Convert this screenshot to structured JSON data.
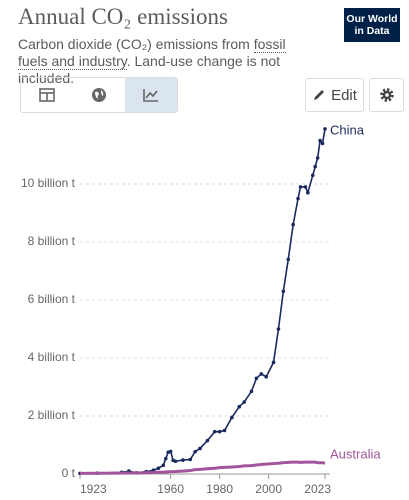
{
  "header": {
    "title": "Annual CO₂ emissions",
    "subtitle_start": "Carbon dioxide (CO₂) emissions from ",
    "subtitle_link": "fossil fuels and industry",
    "subtitle_end": ". Land-use change is not included.",
    "logo": [
      "Our World",
      "in Data"
    ],
    "edit_button": "Edit"
  },
  "chart_data": {
    "type": "line",
    "x": [
      1923,
      1930,
      1940,
      1943,
      1946,
      1950,
      1953,
      1955,
      1957,
      1958,
      1959,
      1960,
      1961,
      1962,
      1965,
      1968,
      1970,
      1972,
      1975,
      1978,
      1980,
      1982,
      1985,
      1988,
      1990,
      1993,
      1995,
      1997,
      1999,
      2002,
      2004,
      2006,
      2008,
      2010,
      2012,
      2013,
      2015,
      2016,
      2018,
      2019,
      2020,
      2021,
      2022,
      2023
    ],
    "series": [
      {
        "name": "China",
        "color": "#1b2a5e",
        "markers": true,
        "values": [
          20000000.0,
          30000000.0,
          60000000.0,
          100000000.0,
          40000000.0,
          80000000.0,
          130000000.0,
          200000000.0,
          300000000.0,
          530000000.0,
          750000000.0,
          780000000.0,
          470000000.0,
          440000000.0,
          480000000.0,
          500000000.0,
          770000000.0,
          880000000.0,
          1150000000.0,
          1460000000.0,
          1460000000.0,
          1500000000.0,
          1950000000.0,
          2320000000.0,
          2480000000.0,
          2850000000.0,
          3300000000.0,
          3450000000.0,
          3350000000.0,
          3850000000.0,
          5000000000.0,
          6300000000.0,
          7400000000.0,
          8600000000.0,
          9500000000.0,
          9900000000.0,
          9900000000.0,
          9700000000.0,
          10300000000.0,
          10600000000.0,
          10900000000.0,
          11500000000.0,
          11400000000.0,
          11900000000.0
        ]
      },
      {
        "name": "Australia",
        "color": "#a2559c",
        "markers": false,
        "values": [
          20000000.0,
          25000000.0,
          30000000.0,
          35000000.0,
          37000000.0,
          45000000.0,
          50000000.0,
          60000000.0,
          65000000.0,
          70000000.0,
          75000000.0,
          80000000.0,
          82000000.0,
          85000000.0,
          100000000.0,
          120000000.0,
          150000000.0,
          160000000.0,
          180000000.0,
          200000000.0,
          220000000.0,
          230000000.0,
          240000000.0,
          260000000.0,
          280000000.0,
          290000000.0,
          310000000.0,
          330000000.0,
          340000000.0,
          360000000.0,
          370000000.0,
          390000000.0,
          400000000.0,
          410000000.0,
          410000000.0,
          400000000.0,
          410000000.0,
          410000000.0,
          410000000.0,
          410000000.0,
          390000000.0,
          390000000.0,
          390000000.0,
          370000000.0
        ]
      }
    ],
    "xlim": [
      1923,
      2023
    ],
    "xticks": [
      1923,
      1960,
      1980,
      2000,
      2023
    ],
    "ylim": [
      0,
      12000000000.0
    ],
    "yticks": [
      {
        "value": 0,
        "label": "0 t"
      },
      {
        "value": 2000000000.0,
        "label": "2 billion t"
      },
      {
        "value": 4000000000.0,
        "label": "4 billion t"
      },
      {
        "value": 6000000000.0,
        "label": "6 billion t"
      },
      {
        "value": 8000000000.0,
        "label": "8 billion t"
      },
      {
        "value": 10000000000.0,
        "label": "10 billion t"
      }
    ],
    "grid": true
  }
}
